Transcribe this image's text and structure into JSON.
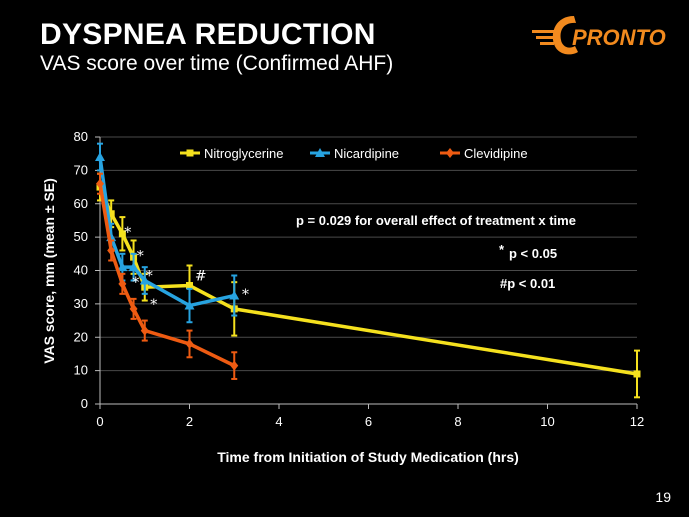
{
  "header": {
    "title": "DYSPNEA REDUCTION",
    "subtitle": "VAS score over time (Confirmed AHF)",
    "logo_text": "PRONTO",
    "page_number": "19"
  },
  "colors": {
    "nitroglycerine": "#f5e11e",
    "nicardipine": "#27a3e0",
    "clevidipine": "#ee5b12",
    "logo_orange": "#f28a1e",
    "grid": "#4a4a4a"
  },
  "chart_data": {
    "type": "line",
    "xlabel": "Time from Initiation of Study Medication (hrs)",
    "ylabel": "VAS score,  mm (mean ± SE)",
    "xlim": [
      0,
      12
    ],
    "ylim": [
      0,
      80
    ],
    "xticks": [
      0,
      2,
      4,
      6,
      8,
      10,
      12
    ],
    "yticks": [
      0,
      10,
      20,
      30,
      40,
      50,
      60,
      70,
      80
    ],
    "legend_position": "top",
    "series": [
      {
        "name": "Nitroglycerine",
        "key": "nitroglycerine",
        "marker": "square",
        "x": [
          0,
          0.25,
          0.5,
          0.75,
          1,
          2,
          3,
          12
        ],
        "y": [
          65,
          57,
          51,
          44,
          35,
          35.5,
          28.5,
          9
        ],
        "err": [
          4,
          4,
          5,
          5,
          4,
          6,
          8,
          7
        ]
      },
      {
        "name": "Nicardipine",
        "key": "nicardipine",
        "marker": "triangle",
        "x": [
          0,
          0.25,
          0.5,
          0.75,
          1,
          2,
          3
        ],
        "y": [
          74,
          50,
          41,
          41,
          37,
          29.5,
          32.5
        ],
        "err": [
          4,
          4,
          4,
          4,
          4,
          5,
          6
        ]
      },
      {
        "name": "Clevidipine",
        "key": "clevidipine",
        "marker": "diamond",
        "x": [
          0,
          0.25,
          0.5,
          0.75,
          1,
          2,
          3
        ],
        "y": [
          66,
          46,
          36,
          28.5,
          22,
          18,
          11.5
        ],
        "err": [
          3,
          3,
          3,
          3,
          3,
          4,
          4
        ]
      }
    ],
    "annotations": {
      "overall": "p = 0.029 for overall effect of treatment x time",
      "star_symbol": "*",
      "star_text": "p < 0.05",
      "hash_text": "#p < 0.01"
    },
    "markers": [
      {
        "symbol": "*",
        "x": 0.62,
        "y": 51.5
      },
      {
        "symbol": "*",
        "x": 0.9,
        "y": 44.5
      },
      {
        "symbol": "*",
        "x": 1.1,
        "y": 38.5
      },
      {
        "symbol": "*",
        "x": 0.8,
        "y": 36.5
      },
      {
        "symbol": "*",
        "x": 1.2,
        "y": 30
      },
      {
        "symbol": "#",
        "x": 2.25,
        "y": 38.5
      },
      {
        "symbol": "*",
        "x": 3.25,
        "y": 33
      }
    ]
  }
}
